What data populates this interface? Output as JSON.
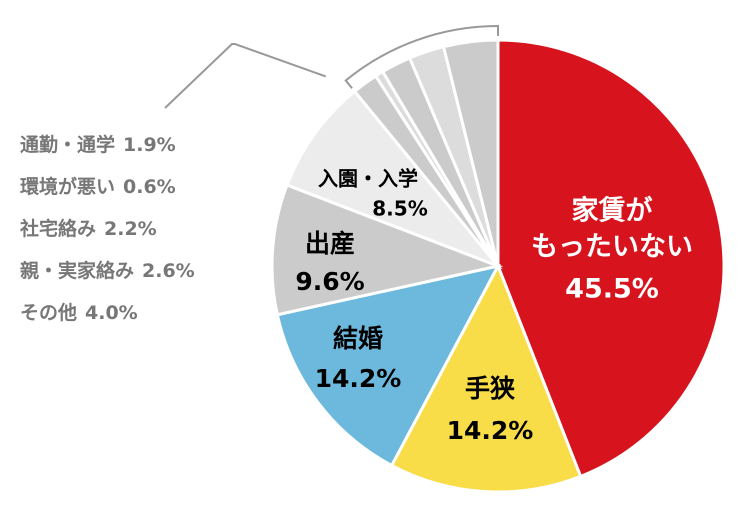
{
  "chart_data": {
    "type": "pie",
    "categories": [
      [
        "家賃が",
        "もったいない"
      ],
      "手狭",
      "結婚",
      "出産",
      "入園・入学",
      "通勤・通学",
      "環境が悪い",
      "社宅絡み",
      "親・実家絡み",
      "その他"
    ],
    "values": [
      45.5,
      14.2,
      14.2,
      9.6,
      8.5,
      1.9,
      0.6,
      2.2,
      2.6,
      4.0
    ],
    "value_labels": [
      "45.5%",
      "14.2%",
      "14.2%",
      "9.6%",
      "8.5%",
      "1.9%",
      "0.6%",
      "2.2%",
      "2.6%",
      "4.0%"
    ],
    "colors": [
      "#d7141e",
      "#f8dc48",
      "#6db9dd",
      "#cbcbcb",
      "#ececec",
      "#cbcbcb",
      "#dcdcdc",
      "#cbcbcb",
      "#dcdcdc",
      "#cbcbcb"
    ]
  }
}
